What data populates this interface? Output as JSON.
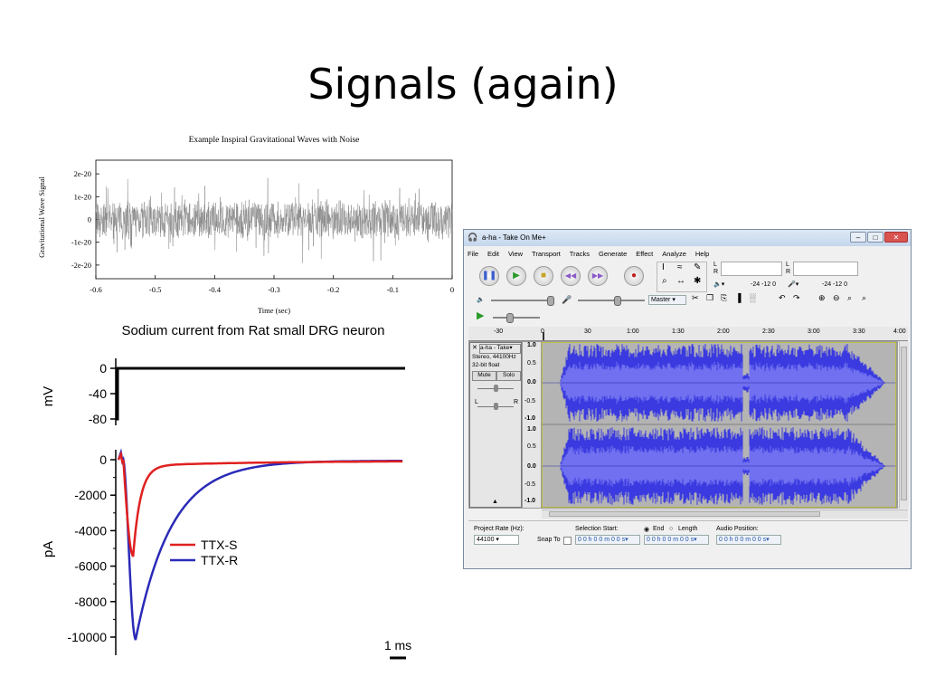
{
  "slide": {
    "title": "Signals (again)"
  },
  "gw_chart": {
    "chart_data": {
      "type": "line",
      "title": "Example Inspiral Gravitational Waves with Noise",
      "xlabel": "Time (sec)",
      "ylabel": "Gravitational Wave Signal",
      "xlim": [
        -0.6,
        0
      ],
      "ylim": [
        -2.6e-20,
        2.6e-20
      ],
      "x_ticks": [
        "-0.6",
        "-0.5",
        "-0.4",
        "-0.3",
        "-0.2",
        "-0.1",
        "0"
      ],
      "y_ticks": [
        "2e-20",
        "1e-20",
        "0",
        "-1e-20",
        "-2e-20"
      ],
      "series": [
        {
          "description": "noisy signal, amplitude approx ±1.3e-20",
          "color": "#8a8a8a"
        }
      ]
    }
  },
  "ephys_chart": {
    "chart_data": [
      {
        "type": "line",
        "title": "Sodium current from Rat small DRG neuron",
        "ylabel": "mV",
        "y_ticks": [
          "0",
          "-40",
          "-80"
        ],
        "series": [
          {
            "step_from_mv": -80,
            "step_to_mv": 0,
            "color": "#000000"
          }
        ]
      },
      {
        "type": "line",
        "ylabel": "pA",
        "y_ticks": [
          "0",
          "-2000",
          "-4000",
          "-6000",
          "-8000",
          "-10000"
        ],
        "scale_bar": "1 ms",
        "series": [
          {
            "name": "TTX-S",
            "color": "#e02020",
            "peak_pA": -5400
          },
          {
            "name": "TTX-R",
            "color": "#2a2ab8",
            "peak_pA": -10100
          }
        ]
      }
    ]
  },
  "audacity": {
    "title": "a-ha - Take On Me+",
    "menu": [
      "File",
      "Edit",
      "View",
      "Transport",
      "Tracks",
      "Generate",
      "Effect",
      "Analyze",
      "Help"
    ],
    "meter_scale": "-24 -12 0",
    "meter_scale_2": "-24 -12 0",
    "master": "Master",
    "timeline": [
      "-30",
      "0",
      "30",
      "1:00",
      "1:30",
      "2:00",
      "2:30",
      "3:00",
      "3:30",
      "4:00"
    ],
    "track": {
      "name": "a-ha - Take",
      "info1": "Stereo, 44100Hz",
      "info2": "32-bit float",
      "mute": "Mute",
      "solo": "Solo",
      "l": "L",
      "r": "R",
      "scale": [
        "1.0",
        "0.5",
        "0.0",
        "-0.5",
        "-1.0"
      ],
      "scale2": [
        "1.0",
        "0.5",
        "0.0",
        "-0.5",
        "-1.0"
      ]
    },
    "status": {
      "project_rate_label": "Project Rate (Hz):",
      "project_rate": "44100",
      "snap_to": "Snap To",
      "selection_start": "Selection Start:",
      "end": "End",
      "length": "Length",
      "audio_position": "Audio Position:",
      "time1": "0 0 h 0 0 m 0 0 s",
      "time2": "0 0 h 0 0 m 0 0 s",
      "time3": "0 0 h 0 0 m 0 0 s"
    },
    "colors": {
      "wave": "#3a3ae0",
      "wave_light": "#7070f0",
      "track_bg": "#b4b4b4"
    }
  }
}
